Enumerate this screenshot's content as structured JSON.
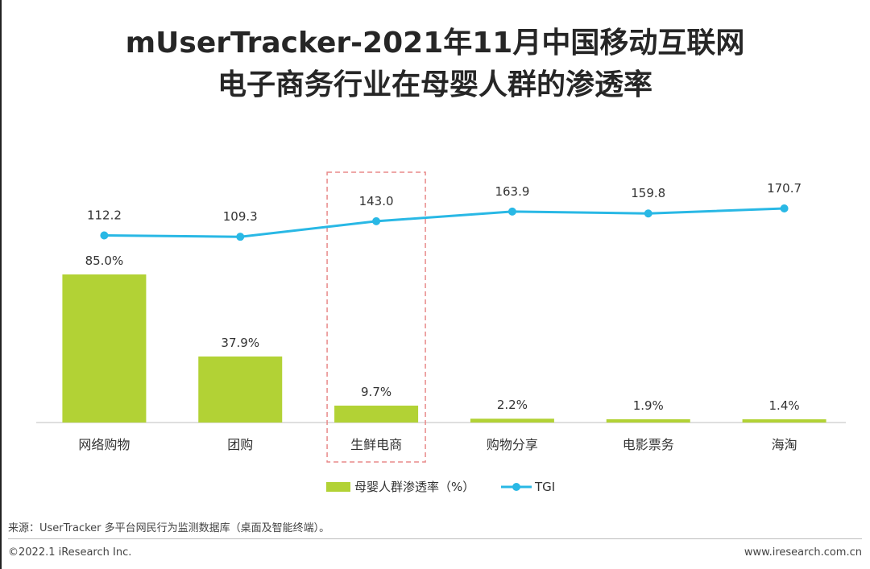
{
  "title_line1": "mUserTracker-2021年11月中国移动互联网",
  "title_line2": "电子商务行业在母婴人群的渗透率",
  "chart_data": {
    "type": "bar",
    "categories": [
      "网络购物",
      "团购",
      "生鲜电商",
      "购物分享",
      "电影票务",
      "海淘"
    ],
    "series": [
      {
        "name": "母婴人群渗透率（%）",
        "type": "bar",
        "values": [
          85.0,
          37.9,
          9.7,
          2.2,
          1.9,
          1.4
        ],
        "labels": [
          "85.0%",
          "37.9%",
          "9.7%",
          "2.2%",
          "1.9%",
          "1.4%"
        ],
        "color": "#b2d235"
      },
      {
        "name": "TGI",
        "type": "line",
        "values": [
          112.2,
          109.3,
          143.0,
          163.9,
          159.8,
          170.7
        ],
        "labels": [
          "112.2",
          "109.3",
          "143.0",
          "163.9",
          "159.8",
          "170.7"
        ],
        "color": "#29b8e5"
      }
    ],
    "highlight_category": "生鲜电商",
    "highlight_color": "#e98a8a",
    "legend_position": "bottom",
    "grid": false
  },
  "source": "来源：UserTracker 多平台网民行为监测数据库（桌面及智能终端）。",
  "copyright": "©2022.1 iResearch Inc.",
  "website": "www.iresearch.com.cn"
}
